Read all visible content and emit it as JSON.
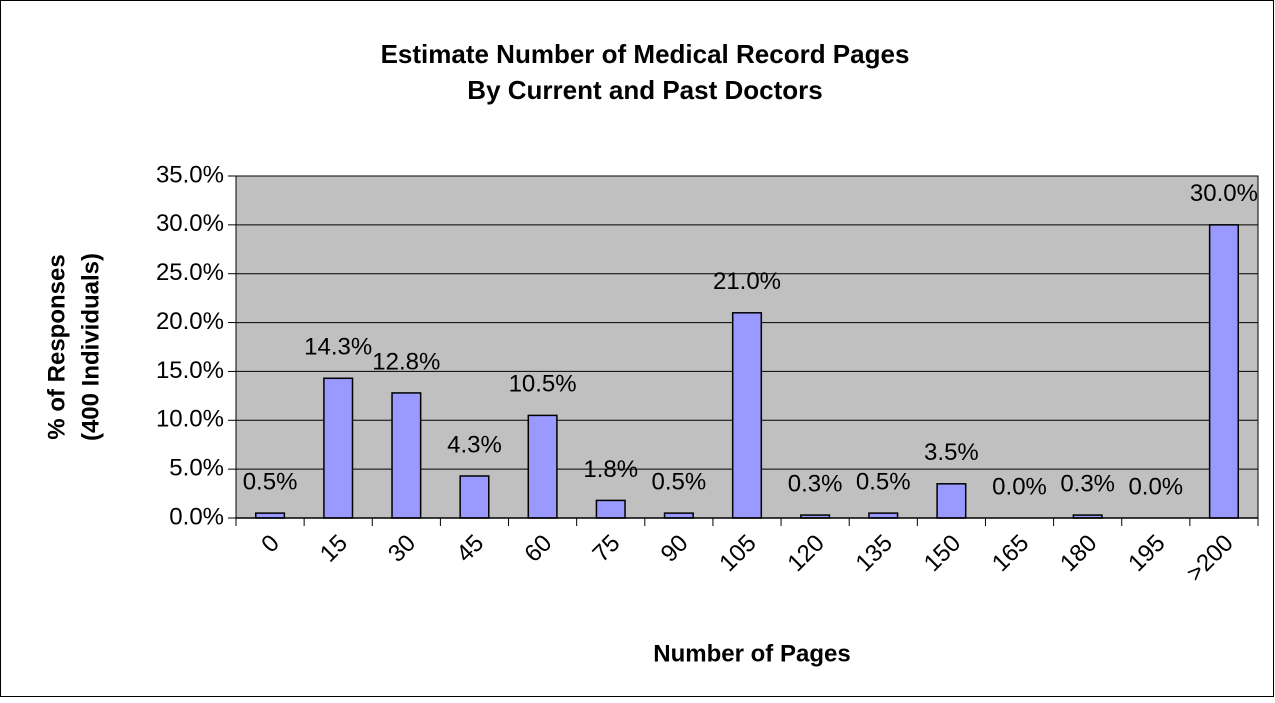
{
  "chart_data": {
    "type": "bar",
    "title": [
      "Estimate Number of Medical Record Pages",
      "By Current and Past Doctors"
    ],
    "x_label": "Number of Pages",
    "y_label": [
      "% of Responses",
      "(400 Individuals)"
    ],
    "categories": [
      "0",
      "15",
      "30",
      "45",
      "60",
      "75",
      "90",
      "105",
      "120",
      "135",
      "150",
      "165",
      "180",
      "195",
      ">200"
    ],
    "values": [
      0.5,
      14.3,
      12.8,
      4.3,
      10.5,
      1.8,
      0.5,
      21.0,
      0.3,
      0.5,
      3.5,
      0.0,
      0.3,
      0.0,
      30.0
    ],
    "value_labels": [
      "0.5%",
      "14.3%",
      "12.8%",
      "4.3%",
      "10.5%",
      "1.8%",
      "0.5%",
      "21.0%",
      "0.3%",
      "0.5%",
      "3.5%",
      "0.0%",
      "0.3%",
      "0.0%",
      "30.0%"
    ],
    "color": "#9999ff",
    "plot_background": "#c0c0c0",
    "ylim": [
      0,
      35
    ],
    "yticks": [
      {
        "value": 0,
        "label": "0.0%"
      },
      {
        "value": 5,
        "label": "5.0%"
      },
      {
        "value": 10,
        "label": "10.0%"
      },
      {
        "value": 15,
        "label": "15.0%"
      },
      {
        "value": 20,
        "label": "20.0%"
      },
      {
        "value": 25,
        "label": "25.0%"
      },
      {
        "value": 30,
        "label": "30.0%"
      },
      {
        "value": 35,
        "label": "35.0%"
      }
    ],
    "grid": true
  }
}
